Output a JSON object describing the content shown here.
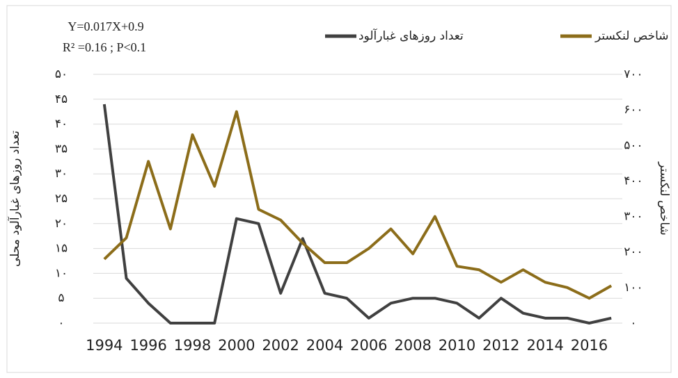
{
  "chart_data": {
    "type": "line",
    "annotations": [
      "Y=0.017X+0.9",
      "R² =0.16 ; P<0.1"
    ],
    "y_label": "تعداد روزهای غبارآلود محلی",
    "y2_label": "شاخص لنکستر",
    "categories": [
      "1994",
      null,
      "1996",
      null,
      "1998",
      null,
      "2000",
      null,
      "2002",
      null,
      "2004",
      null,
      "2006",
      null,
      "2008",
      null,
      "2010",
      null,
      "2012",
      null,
      "2014",
      null,
      "2016",
      null
    ],
    "series": [
      {
        "name": "تعداد روزهای غبارآلود",
        "color": "#404040",
        "values": [
          44,
          9,
          4,
          0,
          0,
          0,
          21,
          20,
          6,
          17,
          6,
          5,
          1,
          4,
          5,
          5,
          4,
          1,
          5,
          2,
          1,
          1,
          0,
          1
        ]
      },
      {
        "name": "شاخص لنکستر",
        "color": "#8c6d1a",
        "axis": "y2",
        "values": [
          180,
          240,
          455,
          265,
          530,
          385,
          595,
          320,
          290,
          225,
          170,
          170,
          210,
          265,
          195,
          300,
          160,
          150,
          115,
          150,
          115,
          100,
          70,
          105
        ]
      }
    ],
    "ylim": [
      0,
      50
    ],
    "yticks": [
      {
        "value": 0,
        "label": "۰"
      },
      {
        "value": 5,
        "label": "۵"
      },
      {
        "value": 10,
        "label": "۱۰"
      },
      {
        "value": 15,
        "label": "۱۵"
      },
      {
        "value": 20,
        "label": "۲۰"
      },
      {
        "value": 25,
        "label": "۲۵"
      },
      {
        "value": 30,
        "label": "۳۰"
      },
      {
        "value": 35,
        "label": "۳۵"
      },
      {
        "value": 40,
        "label": "۴۰"
      },
      {
        "value": 45,
        "label": "۴۵"
      },
      {
        "value": 50,
        "label": "۵۰"
      }
    ],
    "y2lim": [
      0,
      700
    ],
    "y2ticks": [
      {
        "value": 0,
        "label": "۰"
      },
      {
        "value": 100,
        "label": "۱۰۰"
      },
      {
        "value": 200,
        "label": "۲۰۰"
      },
      {
        "value": 300,
        "label": "۳۰۰"
      },
      {
        "value": 400,
        "label": "۴۰۰"
      },
      {
        "value": 500,
        "label": "۵۰۰"
      },
      {
        "value": 600,
        "label": "۶۰۰"
      },
      {
        "value": 700,
        "label": "۷۰۰"
      }
    ],
    "grid": true,
    "legend": "top"
  }
}
